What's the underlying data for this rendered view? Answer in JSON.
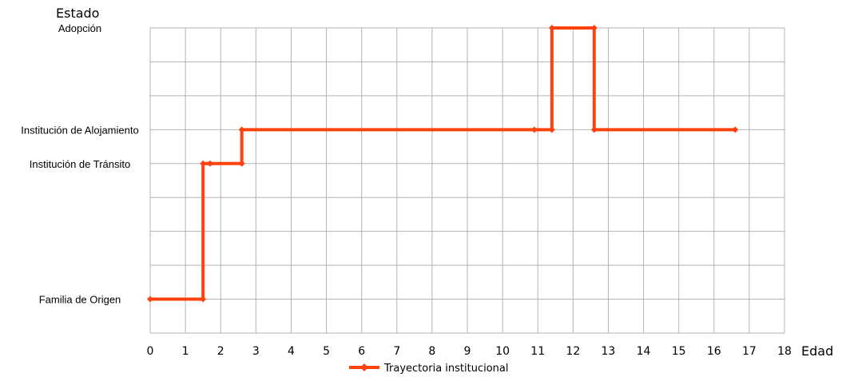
{
  "chart_data": {
    "type": "line",
    "step": true,
    "xlabel": "Edad",
    "ylabel": "Estado",
    "xlim": [
      0,
      18
    ],
    "xticks": [
      "0",
      "1",
      "2",
      "3",
      "4",
      "5",
      "6",
      "7",
      "8",
      "9",
      "10",
      "11",
      "12",
      "13",
      "14",
      "15",
      "16",
      "17",
      "18"
    ],
    "grid": true,
    "legend_position": "bottom",
    "y_categories": [
      {
        "label": "Familia de Origen",
        "level": 1
      },
      {
        "label": "Institución de Tránsito",
        "level": 5
      },
      {
        "label": "Institución de Alojamiento",
        "level": 6
      },
      {
        "label": "Adopción",
        "level": 9
      }
    ],
    "series": [
      {
        "name": "Trayectoria institucional",
        "color": "#ff420e",
        "points": [
          {
            "x": 0,
            "y": 1
          },
          {
            "x": 1.5,
            "y": 1
          },
          {
            "x": 1.5,
            "y": 5
          },
          {
            "x": 1.7,
            "y": 5
          },
          {
            "x": 2.6,
            "y": 5
          },
          {
            "x": 2.6,
            "y": 6
          },
          {
            "x": 10.9,
            "y": 6
          },
          {
            "x": 11.4,
            "y": 6
          },
          {
            "x": 11.4,
            "y": 9
          },
          {
            "x": 12.6,
            "y": 9
          },
          {
            "x": 12.6,
            "y": 6
          },
          {
            "x": 16.6,
            "y": 6
          }
        ],
        "markers_x": [
          0,
          1.5,
          1.7,
          2.6,
          10.9,
          11.4,
          12.6,
          16.6
        ]
      }
    ]
  }
}
